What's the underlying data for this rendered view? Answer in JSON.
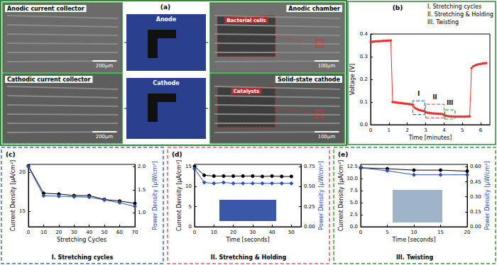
{
  "panel_a": {
    "label": "(a)",
    "images": [
      {
        "title": "Anodic current collector",
        "scale_bar": "200μm"
      },
      {
        "title": "Cathodic current collector",
        "scale_bar": "200μm"
      },
      {
        "title": "Anodic chamber",
        "scale_bar": "100μm",
        "inset": "Bacterial cells"
      },
      {
        "title": "Solid-state cathode",
        "scale_bar": "100μm",
        "inset": "Catalysts"
      }
    ],
    "photos": [
      "Anode",
      "Cathode"
    ]
  },
  "chart_data": [
    {
      "type": "line",
      "annotations": [
        "(b)",
        "I. Stretching cycles",
        "II. Stretching & Holding",
        "III. Twisting"
      ],
      "x_label": "Time [minutes]",
      "y_label": "Voltage [V]",
      "x": [
        0,
        0.1,
        0.2,
        0.3,
        0.4,
        0.5,
        0.6,
        0.7,
        0.8,
        0.9,
        1.0,
        1.1,
        1.2,
        1.3,
        1.4,
        1.5,
        1.6,
        1.7,
        1.8,
        1.9,
        2.0,
        2.1,
        2.2,
        2.3,
        2.4,
        2.5,
        2.6,
        2.7,
        2.8,
        2.9,
        3.0,
        3.1,
        3.2,
        3.3,
        3.4,
        3.5,
        3.6,
        3.7,
        3.8,
        3.9,
        4.0,
        4.1,
        4.2,
        4.3,
        4.4,
        4.5,
        4.6,
        4.7,
        4.8,
        4.9,
        5.0,
        5.1,
        5.2,
        5.3,
        5.4,
        5.5,
        5.6,
        5.7,
        5.8,
        5.9,
        6.0,
        6.1,
        6.2,
        6.3
      ],
      "values": [
        0.365,
        0.366,
        0.367,
        0.368,
        0.368,
        0.369,
        0.369,
        0.37,
        0.37,
        0.371,
        0.371,
        0.372,
        0.1,
        0.099,
        0.098,
        0.097,
        0.096,
        0.095,
        0.094,
        0.093,
        0.092,
        0.091,
        0.09,
        0.088,
        0.075,
        0.07,
        0.066,
        0.064,
        0.062,
        0.06,
        0.055,
        0.053,
        0.052,
        0.051,
        0.05,
        0.049,
        0.049,
        0.048,
        0.048,
        0.047,
        0.042,
        0.04,
        0.038,
        0.037,
        0.037,
        0.036,
        0.036,
        0.036,
        0.036,
        0.036,
        0.036,
        0.036,
        0.036,
        0.037,
        0.037,
        0.25,
        0.258,
        0.262,
        0.265,
        0.267,
        0.268,
        0.27,
        0.271,
        0.272
      ],
      "color": "#e8312f",
      "marker": "circle",
      "regions": [
        {
          "label": "I",
          "x": [
            2.3,
            2.95
          ],
          "y": [
            0.045,
            0.105
          ],
          "color": "#3a6fc4"
        },
        {
          "label": "II",
          "x": [
            3.0,
            4.0
          ],
          "y": [
            0.03,
            0.09
          ],
          "color": "#e06070"
        },
        {
          "label": "III",
          "x": [
            4.05,
            4.6
          ],
          "y": [
            0.025,
            0.065
          ],
          "color": "#3a9a3a"
        }
      ],
      "xlim": [
        0,
        6.5
      ],
      "xticks": [
        0,
        1,
        2,
        3,
        4,
        5,
        6
      ],
      "ylim": [
        0,
        0.4
      ],
      "yticks": [
        {
          "value": 0,
          "label": "0.0"
        },
        0.1,
        0.2,
        0.3,
        0.4
      ],
      "grid": false
    },
    {
      "type": "line",
      "title": "I. Stretching cycles",
      "annotations": [
        "(c)"
      ],
      "x_label": "Stretching Cycles",
      "y_label": "Current Density [μA/cm²]",
      "y2_label": "Power Density [μW/cm²]",
      "x": [
        0,
        10,
        20,
        30,
        40,
        50,
        60,
        70
      ],
      "series": [
        {
          "color": "#000000",
          "marker": "circle",
          "values": [
            20.8,
            17.3,
            17.2,
            17.0,
            17.0,
            16.5,
            16.3,
            16.0
          ]
        },
        {
          "color": "#2a4fb5",
          "marker": "diamond",
          "axis": "y2",
          "values": [
            2.0,
            1.37,
            1.36,
            1.35,
            1.34,
            1.28,
            1.22,
            1.14
          ]
        }
      ],
      "xlim": [
        0,
        70
      ],
      "xticks": [
        0,
        10,
        20,
        30,
        40,
        50,
        60,
        70
      ],
      "ylim": [
        13,
        21
      ],
      "yticks": [
        15,
        20
      ],
      "y2lim": [
        0.7,
        2.05
      ],
      "y2ticks": [
        {
          "value": 1,
          "label": "1.0"
        },
        1.5,
        {
          "value": 2,
          "label": "2.0"
        }
      ],
      "grid": false
    },
    {
      "type": "line",
      "title": "II. Stretching & Holding",
      "annotations": [
        "(d)"
      ],
      "x_label": "Time [seconds]",
      "y_label": "Current Density [μA/cm²]",
      "y2_label": "Power Density [μW/cm²]",
      "x": [
        0,
        5,
        10,
        15,
        20,
        25,
        30,
        35,
        40,
        45,
        50
      ],
      "series": [
        {
          "color": "#000000",
          "marker": "circle",
          "values": [
            15.0,
            12.8,
            12.6,
            12.6,
            12.6,
            12.6,
            12.6,
            12.5,
            12.6,
            12.5,
            12.5
          ]
        },
        {
          "color": "#2a4fb5",
          "marker": "diamond",
          "axis": "y2",
          "values": [
            0.72,
            0.55,
            0.54,
            0.55,
            0.54,
            0.54,
            0.54,
            0.54,
            0.54,
            0.54,
            0.54
          ]
        }
      ],
      "xlim": [
        0,
        55
      ],
      "xticks": [
        0,
        10,
        20,
        30,
        40,
        50
      ],
      "ylim": [
        0,
        15.5
      ],
      "yticks": [
        0,
        5,
        10,
        15
      ],
      "y2lim": [
        0,
        0.775
      ],
      "y2ticks": [
        {
          "value": 0,
          "label": "0.00"
        },
        0.25,
        {
          "value": 0.5,
          "label": "0.50"
        },
        0.75
      ],
      "grid": false
    },
    {
      "type": "line",
      "title": "III. Twisting",
      "annotations": [
        "(e)"
      ],
      "x_label": "Time [seconds]",
      "y_label": "Current Density [μA/cm²]",
      "y2_label": "Power Density [μW/cm²]",
      "x": [
        0,
        5,
        10,
        15,
        20
      ],
      "series": [
        {
          "color": "#000000",
          "marker": "circle",
          "values": [
            12.3,
            12.1,
            11.8,
            11.8,
            11.6
          ]
        },
        {
          "color": "#2a4fb5",
          "marker": "diamond",
          "axis": "y2",
          "values": [
            0.59,
            0.56,
            0.52,
            0.52,
            0.52
          ]
        }
      ],
      "xlim": [
        0,
        20
      ],
      "xticks": [
        0,
        5,
        10,
        15,
        20
      ],
      "ylim": [
        0,
        13
      ],
      "yticks": [
        {
          "value": 0,
          "label": "0.0"
        },
        2.5,
        {
          "value": 5,
          "label": "5.0"
        },
        7.5,
        {
          "value": 10,
          "label": "10.0"
        },
        12.5
      ],
      "y2lim": [
        0,
        0.624
      ],
      "y2ticks": [
        {
          "value": 0,
          "label": "0.00"
        },
        0.15,
        {
          "value": 0.3,
          "label": "0.30"
        },
        0.45,
        {
          "value": 0.6,
          "label": "0.60"
        }
      ],
      "grid": false
    }
  ]
}
